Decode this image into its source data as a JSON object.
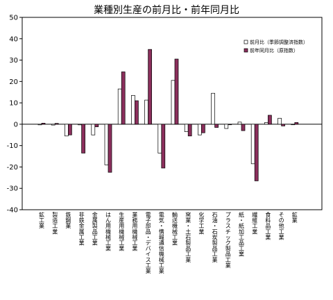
{
  "chart_data": {
    "type": "bar",
    "title": "業種別生産の前月比・前年同月比",
    "xlabel": "",
    "ylabel": "",
    "ylim": [
      -40,
      50
    ],
    "yticks": [
      50,
      40,
      30,
      20,
      10,
      0,
      -10,
      -20,
      -30,
      -40
    ],
    "grid": false,
    "legend_position": "right",
    "categories": [
      "鉱工業",
      "製造工業",
      "鉄鋼業",
      "非鉄金属工業",
      "金属製品工業",
      "はん用機械工業",
      "生産用機械工業",
      "業務用機械工業",
      "電子部品・デバイス工業",
      "電気・情報通信機械工業",
      "輸送機械工業",
      "窯業・土石製品工業",
      "化学工業",
      "石油・石炭製品工業",
      "プラスチック製品工業",
      "紙・紙加工品工業",
      "繊維工業",
      "食料品工業",
      "その他工業",
      "鉱業"
    ],
    "series": [
      {
        "name": "前月比（季節調整済指数）",
        "color": "#ffffff",
        "values": [
          -0.3,
          -0.4,
          -5.5,
          -0.3,
          -5.0,
          -19.0,
          16.5,
          13.5,
          11.3,
          -13.5,
          20.5,
          -3.5,
          -5.0,
          14.5,
          -2.0,
          1.0,
          -18.5,
          0.8,
          2.8,
          0.0
        ]
      },
      {
        "name": "前年同月比（原指数）",
        "color": "#8b2f5c",
        "values": [
          0.5,
          0.4,
          -5.0,
          -13.5,
          -1.2,
          -22.5,
          24.5,
          11.0,
          35.0,
          -20.5,
          30.5,
          -5.5,
          -4.0,
          -1.5,
          0.0,
          -3.0,
          -26.5,
          4.2,
          -0.8,
          0.8
        ]
      }
    ]
  }
}
